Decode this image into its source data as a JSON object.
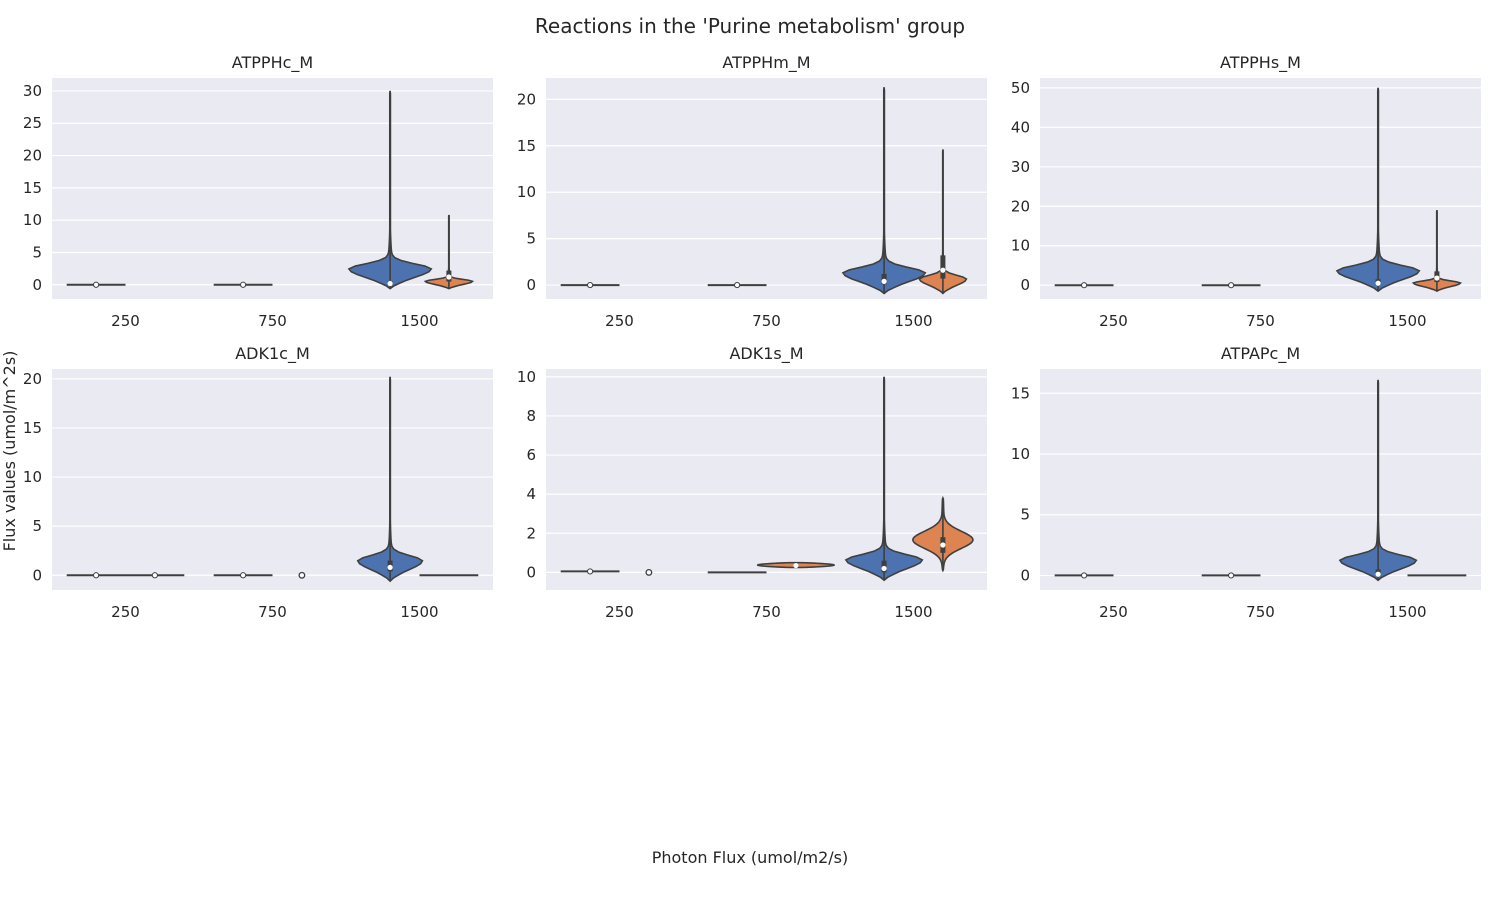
{
  "title": "Reactions in the 'Purine metabolism' group",
  "xlabel": "Photon Flux (umol/m2/s)",
  "ylabel": "Flux values (umol/m^2s)",
  "colors": {
    "blue": "#4c72b0",
    "orange": "#dd8452",
    "plot_bg": "#eaeaf2",
    "grid": "#ffffff",
    "line": "#3f3f3f"
  },
  "chart_data": [
    {
      "type": "violin",
      "title": "ATPPHc_M",
      "categories": [
        "250",
        "750",
        "1500"
      ],
      "yticks": [
        0,
        5,
        10,
        15,
        20,
        25,
        30
      ],
      "ylim": [
        -2.2,
        32
      ],
      "series": [
        {
          "color": "blue",
          "violins": [
            {
              "category": "250",
              "min": 0,
              "max": 0,
              "median": 0,
              "q1": 0,
              "q3": 0,
              "flat": true
            },
            {
              "category": "750",
              "min": 0,
              "max": 0,
              "median": 0,
              "q1": 0,
              "q3": 0,
              "flat": true
            },
            {
              "category": "1500",
              "min": -0.6,
              "max": 30,
              "median": 0.2,
              "q1": 0,
              "q3": 0.6,
              "width": 0.28
            }
          ]
        },
        {
          "color": "orange",
          "violins": [
            {
              "category": "1500",
              "min": -0.6,
              "max": 10.8,
              "median": 1.2,
              "q1": 0.5,
              "q3": 2.2,
              "width": 0.16
            }
          ]
        }
      ]
    },
    {
      "type": "violin",
      "title": "ATPPHm_M",
      "categories": [
        "250",
        "750",
        "1500"
      ],
      "yticks": [
        0,
        5,
        10,
        15,
        20
      ],
      "ylim": [
        -1.5,
        22.3
      ],
      "series": [
        {
          "color": "blue",
          "violins": [
            {
              "category": "250",
              "min": 0,
              "max": 0,
              "median": 0,
              "q1": 0,
              "q3": 0,
              "flat": true
            },
            {
              "category": "750",
              "min": 0,
              "max": 0,
              "median": 0,
              "q1": 0,
              "q3": 0,
              "flat": true
            },
            {
              "category": "1500",
              "min": -0.9,
              "max": 21.3,
              "median": 0.4,
              "q1": 0.1,
              "q3": 1.2,
              "width": 0.28
            }
          ]
        },
        {
          "color": "orange",
          "violins": [
            {
              "category": "1500",
              "min": -0.9,
              "max": 14.6,
              "median": 1.6,
              "q1": 0.7,
              "q3": 3.2,
              "width": 0.16
            }
          ]
        }
      ]
    },
    {
      "type": "violin",
      "title": "ATPPHs_M",
      "categories": [
        "250",
        "750",
        "1500"
      ],
      "yticks": [
        0,
        10,
        20,
        30,
        40,
        50
      ],
      "ylim": [
        -3.5,
        52.5
      ],
      "series": [
        {
          "color": "blue",
          "violins": [
            {
              "category": "250",
              "min": 0,
              "max": 0,
              "median": 0,
              "q1": 0,
              "q3": 0,
              "flat": true
            },
            {
              "category": "750",
              "min": 0,
              "max": 0,
              "median": 0,
              "q1": 0,
              "q3": 0,
              "flat": true
            },
            {
              "category": "1500",
              "min": -1.5,
              "max": 50,
              "median": 0.5,
              "q1": 0.1,
              "q3": 1.5,
              "width": 0.28
            }
          ]
        },
        {
          "color": "orange",
          "violins": [
            {
              "category": "1500",
              "min": -1.5,
              "max": 19,
              "median": 1.8,
              "q1": 0.8,
              "q3": 3.5,
              "width": 0.16
            }
          ]
        }
      ]
    },
    {
      "type": "violin",
      "title": "ADK1c_M",
      "categories": [
        "250",
        "750",
        "1500"
      ],
      "yticks": [
        0,
        5,
        10,
        15,
        20
      ],
      "ylim": [
        -1.5,
        21
      ],
      "series": [
        {
          "color": "blue",
          "violins": [
            {
              "category": "250",
              "min": 0,
              "max": 0,
              "median": 0,
              "q1": 0,
              "q3": 0,
              "flat": true
            },
            {
              "category": "750",
              "min": -0.1,
              "max": 0,
              "median": 0,
              "q1": 0,
              "q3": 0,
              "flat": true
            },
            {
              "category": "1500",
              "min": -0.6,
              "max": 20.2,
              "median": 0.8,
              "q1": 0.4,
              "q3": 1.5,
              "width": 0.22
            }
          ]
        },
        {
          "color": "orange",
          "violins": [
            {
              "category": "250",
              "min": -0.1,
              "max": 0,
              "median": 0,
              "q1": 0,
              "q3": 0,
              "flat": true
            },
            {
              "category": "750",
              "min": 0,
              "max": 0,
              "median": 0,
              "q1": 0,
              "q3": 0,
              "dot": true
            },
            {
              "category": "1500",
              "min": 0,
              "max": 0,
              "median": 0,
              "q1": 0,
              "q3": 0,
              "flat": true,
              "noMedian": true
            }
          ]
        }
      ]
    },
    {
      "type": "violin",
      "title": "ADK1s_M",
      "categories": [
        "250",
        "750",
        "1500"
      ],
      "yticks": [
        0,
        2,
        4,
        6,
        8,
        10
      ],
      "ylim": [
        -0.9,
        10.4
      ],
      "series": [
        {
          "color": "blue",
          "violins": [
            {
              "category": "250",
              "min": 0.05,
              "max": 0.05,
              "median": 0.05,
              "q1": 0.05,
              "q3": 0.05,
              "flat": true
            },
            {
              "category": "750",
              "min": 0,
              "max": 0,
              "median": 0,
              "q1": 0,
              "q3": 0,
              "flat": true,
              "noMedian": true
            },
            {
              "category": "1500",
              "min": -0.4,
              "max": 10,
              "median": 0.2,
              "q1": 0,
              "q3": 0.6,
              "width": 0.26
            }
          ]
        },
        {
          "color": "orange",
          "violins": [
            {
              "category": "250",
              "min": 0,
              "max": 0,
              "median": 0,
              "q1": 0,
              "q3": 0,
              "dot": true
            },
            {
              "category": "750",
              "min": 0.25,
              "max": 0.5,
              "median": 0.35,
              "q1": 0.3,
              "q3": 0.4,
              "width": 0.26,
              "shape": "flat"
            },
            {
              "category": "1500",
              "min": 0.1,
              "max": 3.8,
              "median": 1.4,
              "q1": 1,
              "q3": 1.8,
              "width": 0.2,
              "shape": "mid"
            }
          ]
        }
      ]
    },
    {
      "type": "violin",
      "title": "ATPAPc_M",
      "categories": [
        "250",
        "750",
        "1500"
      ],
      "yticks": [
        0,
        5,
        10,
        15
      ],
      "ylim": [
        -1.2,
        17
      ],
      "series": [
        {
          "color": "blue",
          "violins": [
            {
              "category": "250",
              "min": 0,
              "max": 0,
              "median": 0,
              "q1": 0,
              "q3": 0,
              "flat": true
            },
            {
              "category": "750",
              "min": 0,
              "max": 0,
              "median": 0,
              "q1": 0,
              "q3": 0,
              "flat": true
            },
            {
              "category": "1500",
              "min": -0.4,
              "max": 16.1,
              "median": 0.1,
              "q1": 0,
              "q3": 0.5,
              "width": 0.26
            }
          ]
        },
        {
          "color": "orange",
          "violins": [
            {
              "category": "1500",
              "min": 0,
              "max": 0,
              "median": 0,
              "q1": 0,
              "q3": 0,
              "flat": true,
              "noMedian": true
            }
          ]
        }
      ]
    }
  ]
}
